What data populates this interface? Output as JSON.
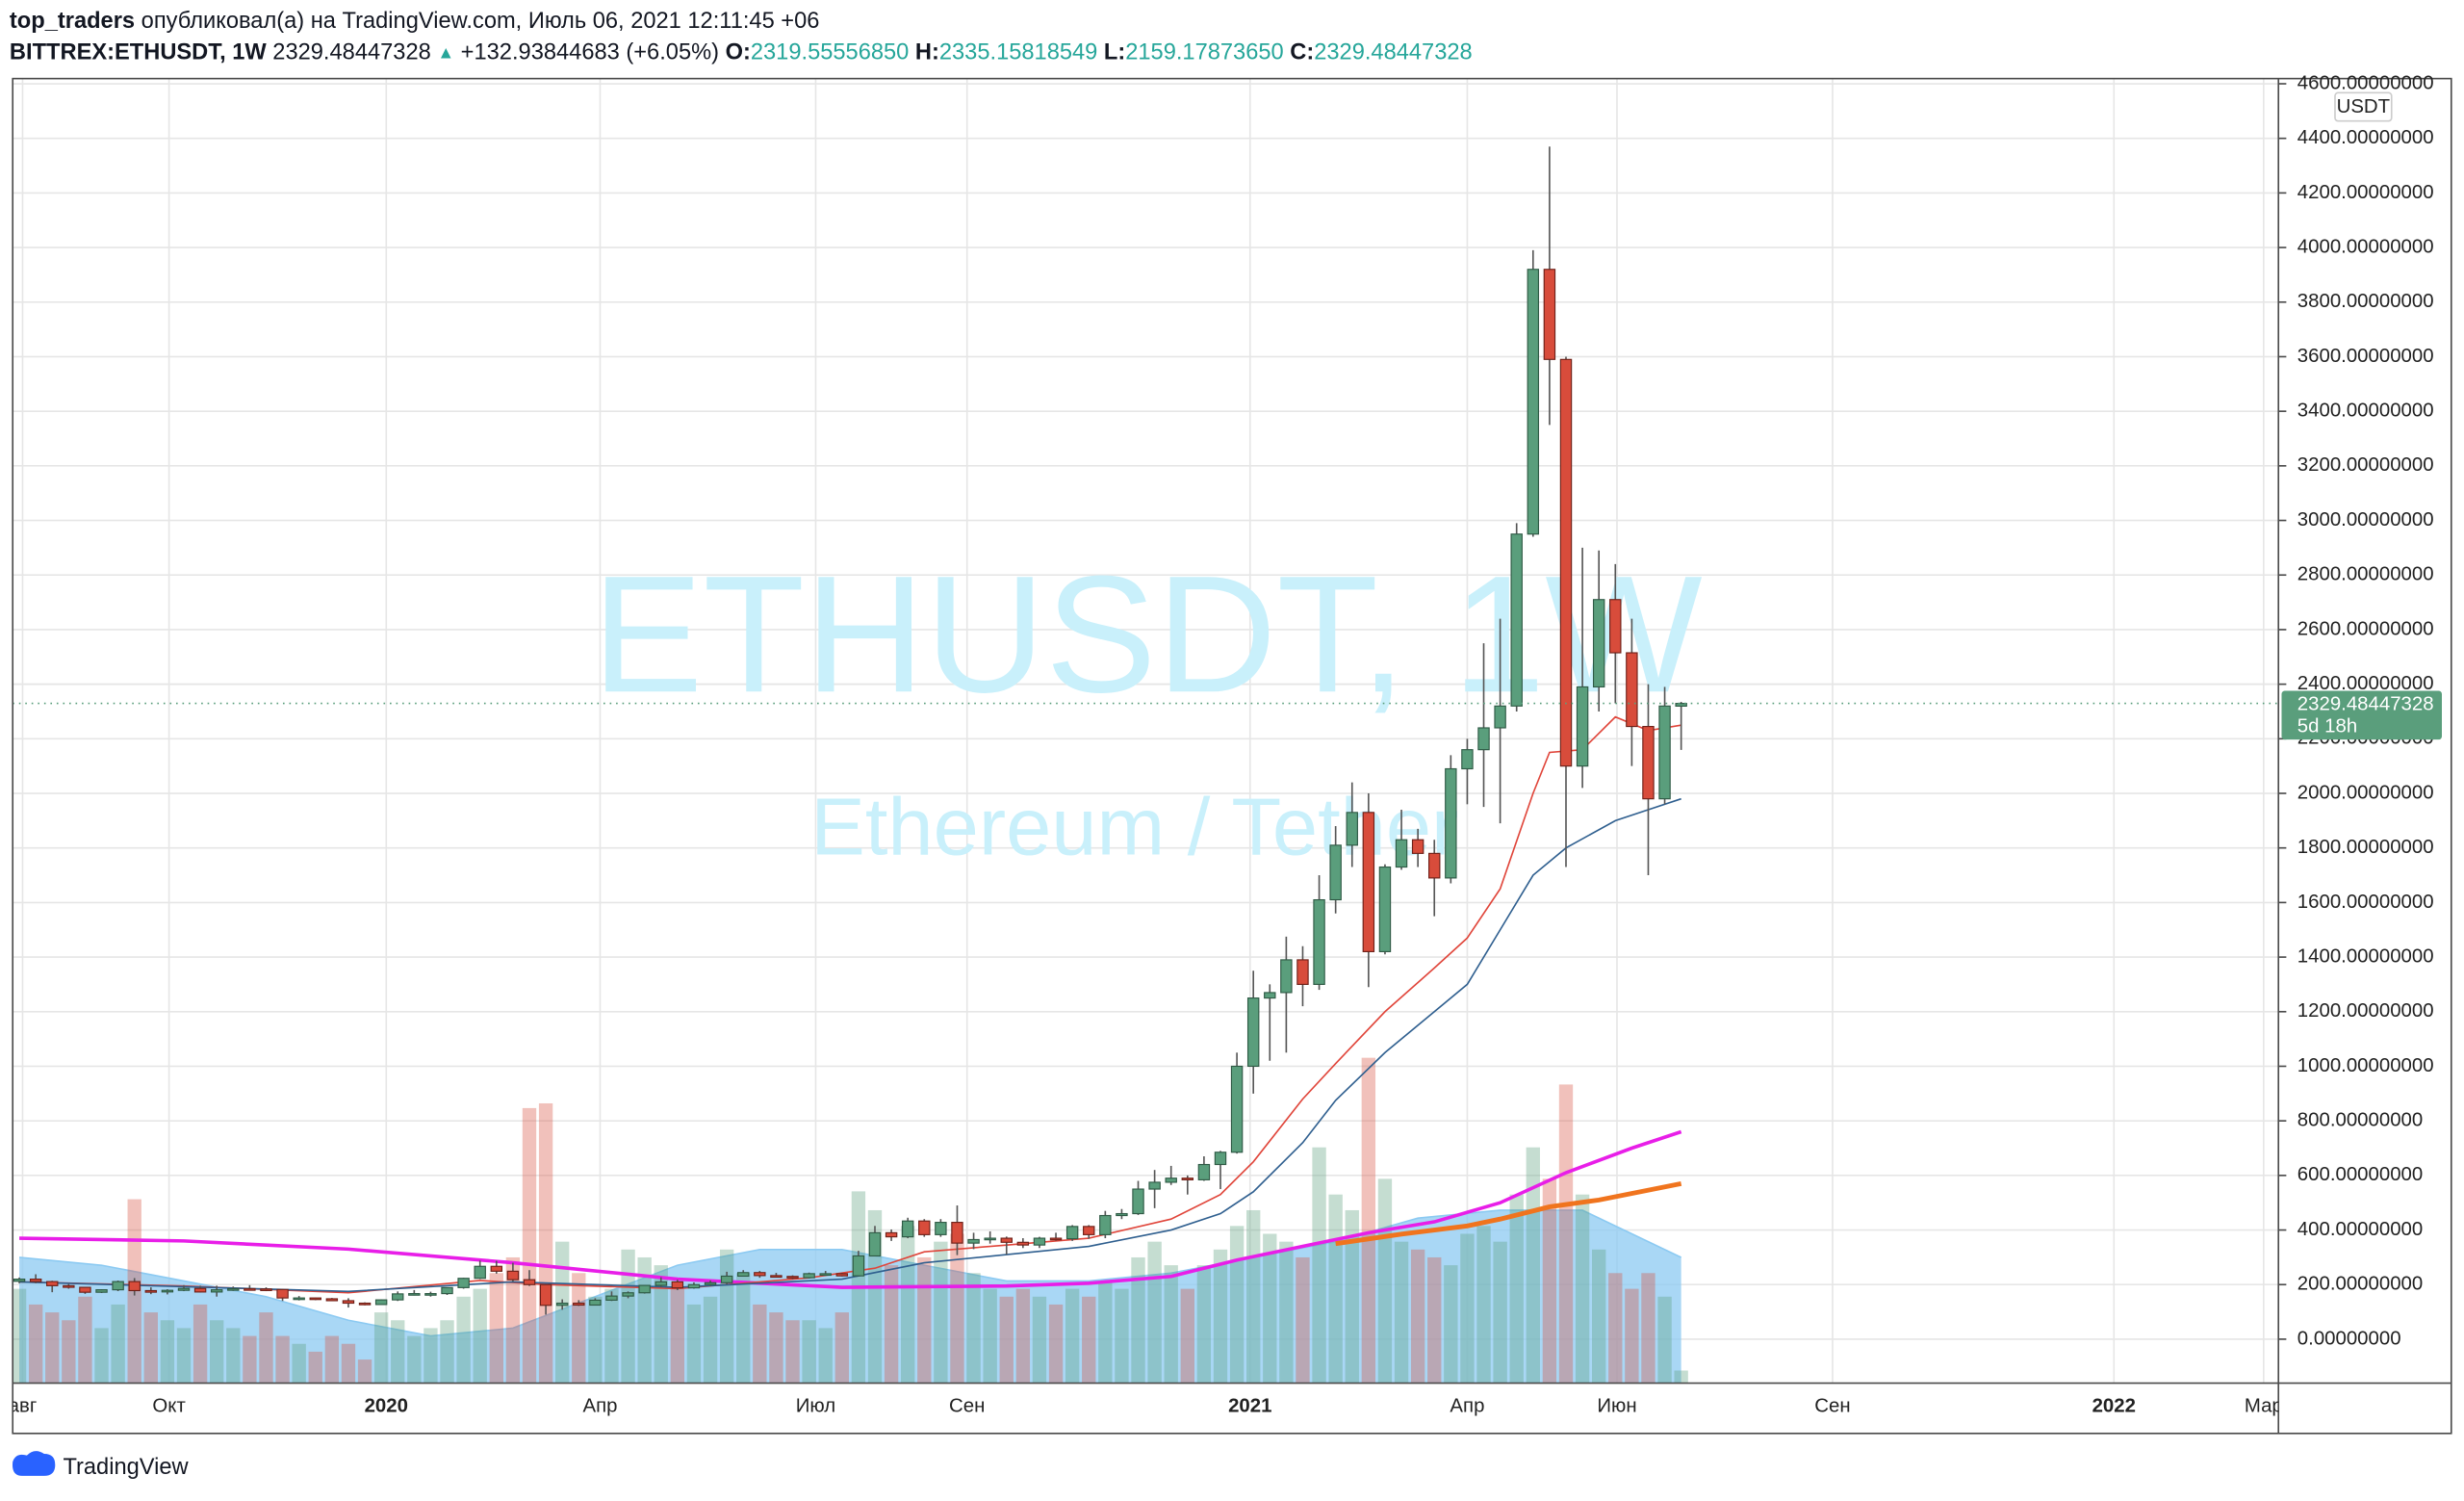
{
  "header": {
    "author": "top_traders",
    "published": "опубликовал(а) на TradingView.com, Июль 06, 2021 12:11:45 +06",
    "symbol": "BITTREX:ETHUSDT, 1W",
    "last": "2329.48447328",
    "change_arrow": "▲",
    "change": "+132.93844683 (+6.05%)",
    "o_label": "O:",
    "open": "2319.55556850",
    "h_label": "H:",
    "high": "2335.15818549",
    "l_label": "L:",
    "low": "2159.17873650",
    "c_label": "C:",
    "close": "2329.48447328"
  },
  "chart_data": {
    "type": "candlestick",
    "watermark": {
      "title": "ETHUSDT, 1W",
      "subtitle": "Ethereum / Tether"
    },
    "currency": "USDT",
    "last_price_label": "2329.48447328",
    "countdown": "5d 18h",
    "up_color": "#5a9e7c",
    "down_color": "#d84c3b",
    "open": [
      212,
      220,
      211,
      196,
      190,
      172,
      181,
      211,
      178,
      175,
      179,
      186,
      173,
      181,
      185,
      184,
      182,
      151,
      151,
      148,
      141,
      132,
      127,
      144,
      166,
      167,
      167,
      189,
      223,
      267,
      249,
      218,
      200,
      124,
      132,
      125,
      143,
      158,
      170,
      197,
      210,
      188,
      200,
      207,
      231,
      244,
      233,
      230,
      225,
      240,
      240,
      232,
      305,
      390,
      375,
      433,
      383,
      428,
      352,
      365,
      370,
      355,
      345,
      370,
      368,
      413,
      383,
      453,
      460,
      550,
      575,
      590,
      584,
      640,
      685,
      1000,
      1250,
      1270,
      1390,
      1300,
      1610,
      1810,
      1930,
      1420,
      1730,
      1830,
      1780,
      1690,
      2090,
      2160,
      2240,
      2320,
      2950,
      3920,
      3590,
      2100,
      2390,
      2710,
      2515,
      2245,
      1980,
      2319.5555685
    ],
    "high": [
      226,
      238,
      214,
      202,
      192,
      183,
      215,
      224,
      190,
      183,
      198,
      196,
      196,
      193,
      198,
      190,
      184,
      158,
      152,
      151,
      150,
      135,
      146,
      175,
      180,
      174,
      190,
      225,
      288,
      287,
      280,
      253,
      202,
      146,
      143,
      150,
      175,
      175,
      198,
      227,
      218,
      208,
      215,
      247,
      253,
      250,
      243,
      234,
      244,
      250,
      243,
      324,
      415,
      402,
      445,
      440,
      440,
      490,
      390,
      395,
      376,
      370,
      375,
      390,
      418,
      418,
      470,
      477,
      580,
      620,
      635,
      600,
      670,
      690,
      1050,
      1350,
      1300,
      1475,
      1440,
      1700,
      1880,
      2040,
      2000,
      1740,
      1940,
      1870,
      1830,
      2140,
      2200,
      2550,
      2640,
      2990,
      3990,
      4370,
      3600,
      2900,
      2890,
      2840,
      2640,
      2400,
      2390,
      2335.15818549
    ],
    "low": [
      205,
      205,
      172,
      185,
      166,
      169,
      176,
      160,
      165,
      164,
      176,
      171,
      156,
      177,
      180,
      176,
      140,
      142,
      143,
      140,
      116,
      124,
      126,
      140,
      160,
      156,
      162,
      185,
      220,
      240,
      211,
      195,
      90,
      108,
      122,
      125,
      140,
      150,
      167,
      190,
      180,
      185,
      195,
      200,
      230,
      225,
      226,
      220,
      222,
      236,
      230,
      232,
      305,
      360,
      370,
      375,
      375,
      308,
      330,
      350,
      310,
      334,
      334,
      361,
      360,
      368,
      370,
      440,
      455,
      480,
      565,
      530,
      580,
      550,
      680,
      900,
      1020,
      1050,
      1220,
      1280,
      1560,
      1730,
      1290,
      1410,
      1720,
      1730,
      1550,
      1670,
      1960,
      1950,
      1890,
      2300,
      2940,
      3350,
      1730,
      2020,
      2300,
      2330,
      2100,
      1700,
      1960,
      2159.1787365
    ],
    "close": [
      220,
      211,
      196,
      190,
      172,
      181,
      211,
      178,
      175,
      179,
      186,
      173,
      181,
      185,
      184,
      182,
      151,
      151,
      148,
      141,
      132,
      127,
      144,
      166,
      167,
      167,
      189,
      223,
      267,
      249,
      218,
      200,
      124,
      132,
      125,
      143,
      158,
      170,
      197,
      210,
      188,
      200,
      207,
      231,
      244,
      233,
      230,
      225,
      240,
      240,
      232,
      305,
      390,
      375,
      433,
      383,
      428,
      352,
      365,
      370,
      355,
      345,
      370,
      368,
      413,
      383,
      453,
      460,
      550,
      575,
      590,
      584,
      640,
      685,
      1000,
      1250,
      1270,
      1390,
      1300,
      1610,
      1810,
      1930,
      1420,
      1730,
      1830,
      1780,
      1690,
      2090,
      2160,
      2240,
      2320,
      2950,
      3920,
      3590,
      2100,
      2390,
      2710,
      2515,
      2245,
      1980,
      2320,
      2329.48447328
    ],
    "volume": {
      "ylim": [
        0,
        830
      ],
      "opacity": 0.35,
      "values": [
        60,
        50,
        45,
        40,
        55,
        35,
        50,
        117,
        45,
        40,
        35,
        50,
        40,
        35,
        30,
        45,
        30,
        25,
        20,
        30,
        25,
        15,
        45,
        40,
        30,
        35,
        40,
        55,
        60,
        70,
        80,
        175,
        178,
        90,
        70,
        55,
        60,
        85,
        80,
        75,
        60,
        50,
        55,
        85,
        70,
        50,
        45,
        40,
        40,
        35,
        45,
        122,
        110,
        75,
        100,
        80,
        90,
        95,
        70,
        60,
        55,
        60,
        55,
        50,
        60,
        55,
        65,
        60,
        80,
        90,
        75,
        60,
        75,
        85,
        100,
        110,
        95,
        90,
        80,
        150,
        120,
        110,
        207,
        130,
        90,
        85,
        80,
        75,
        95,
        100,
        90,
        120,
        150,
        130,
        190,
        120,
        85,
        70,
        60,
        70,
        55,
        8
      ]
    },
    "volume_ma": {
      "color": "#8ccaf2",
      "x": [
        0,
        5,
        10,
        15,
        20,
        25,
        30,
        35,
        40,
        45,
        50,
        55,
        60,
        65,
        70,
        75,
        80,
        85,
        90,
        95,
        101
      ],
      "values": [
        80,
        75,
        65,
        55,
        40,
        30,
        35,
        55,
        75,
        85,
        85,
        75,
        65,
        65,
        70,
        80,
        90,
        105,
        110,
        110,
        80
      ]
    },
    "lines": [
      {
        "color": "#e81ee8",
        "width": 2.2,
        "x": [
          0,
          10,
          20,
          30,
          40,
          50,
          60,
          65,
          70,
          74,
          78,
          82,
          86,
          90,
          94,
          98,
          101
        ],
        "values": [
          370,
          360,
          330,
          280,
          220,
          190,
          195,
          205,
          230,
          290,
          340,
          390,
          430,
          500,
          610,
          700,
          760
        ]
      },
      {
        "color": "#f0741e",
        "width": 3,
        "x": [
          80,
          84,
          88,
          90,
          93,
          96,
          101
        ],
        "values": [
          350,
          385,
          415,
          440,
          485,
          510,
          570
        ]
      },
      {
        "color": "#e0453a",
        "width": 1,
        "x": [
          0,
          10,
          20,
          28,
          32,
          40,
          48,
          52,
          55,
          60,
          65,
          70,
          73,
          75,
          78,
          80,
          83,
          86,
          88,
          90,
          92,
          93,
          95,
          97,
          99,
          101
        ],
        "values": [
          210,
          195,
          170,
          215,
          200,
          185,
          225,
          260,
          320,
          345,
          370,
          440,
          530,
          650,
          880,
          1010,
          1200,
          1360,
          1470,
          1650,
          2000,
          2150,
          2160,
          2280,
          2230,
          2250
        ]
      },
      {
        "color": "#2f5f8f",
        "width": 1,
        "x": [
          0,
          20,
          30,
          40,
          50,
          55,
          60,
          65,
          70,
          73,
          75,
          78,
          80,
          83,
          86,
          88,
          90,
          92,
          93,
          94,
          97,
          99,
          101
        ],
        "values": [
          210,
          175,
          210,
          190,
          220,
          280,
          310,
          340,
          400,
          460,
          540,
          720,
          875,
          1050,
          1200,
          1300,
          1500,
          1700,
          1750,
          1800,
          1900,
          1940,
          1980
        ]
      }
    ],
    "xlim": [
      -0.4,
      137.3
    ],
    "xticks": [
      {
        "value": 0.2,
        "label": "авг"
      },
      {
        "value": 9.1,
        "label": "Окт"
      },
      {
        "value": 22.3,
        "label": "2020"
      },
      {
        "value": 35.3,
        "label": "Апр"
      },
      {
        "value": 48.4,
        "label": "Июл"
      },
      {
        "value": 57.6,
        "label": "Сен"
      },
      {
        "value": 74.8,
        "label": "2021"
      },
      {
        "value": 88.0,
        "label": "Апр"
      },
      {
        "value": 97.1,
        "label": "Июн"
      },
      {
        "value": 110.2,
        "label": "Сен"
      },
      {
        "value": 127.3,
        "label": "2022"
      },
      {
        "value": 136.4,
        "label": "Мар"
      }
    ],
    "ylim": [
      -161,
      4619
    ],
    "yticks": [
      {
        "value": 0,
        "label": "0.00000000"
      },
      {
        "value": 200,
        "label": "200.00000000"
      },
      {
        "value": 400,
        "label": "400.00000000"
      },
      {
        "value": 600,
        "label": "600.00000000"
      },
      {
        "value": 800,
        "label": "800.00000000"
      },
      {
        "value": 1000,
        "label": "1000.00000000"
      },
      {
        "value": 1200,
        "label": "1200.00000000"
      },
      {
        "value": 1400,
        "label": "1400.00000000"
      },
      {
        "value": 1600,
        "label": "1600.00000000"
      },
      {
        "value": 1800,
        "label": "1800.00000000"
      },
      {
        "value": 2000,
        "label": "2000.00000000"
      },
      {
        "value": 2200,
        "label": "2200.00000000"
      },
      {
        "value": 2400,
        "label": "2400.00000000"
      },
      {
        "value": 2600,
        "label": "2600.00000000"
      },
      {
        "value": 2800,
        "label": "2800.00000000"
      },
      {
        "value": 3000,
        "label": "3000.00000000"
      },
      {
        "value": 3200,
        "label": "3200.00000000"
      },
      {
        "value": 3400,
        "label": "3400.00000000"
      },
      {
        "value": 3600,
        "label": "3600.00000000"
      },
      {
        "value": 3800,
        "label": "3800.00000000"
      },
      {
        "value": 4000,
        "label": "4000.00000000"
      },
      {
        "value": 4200,
        "label": "4200.00000000"
      },
      {
        "value": 4400,
        "label": "4400.00000000"
      },
      {
        "value": 4600,
        "label": "4600.00000000"
      }
    ],
    "grid": true
  },
  "footer": {
    "brand": "TradingView"
  }
}
